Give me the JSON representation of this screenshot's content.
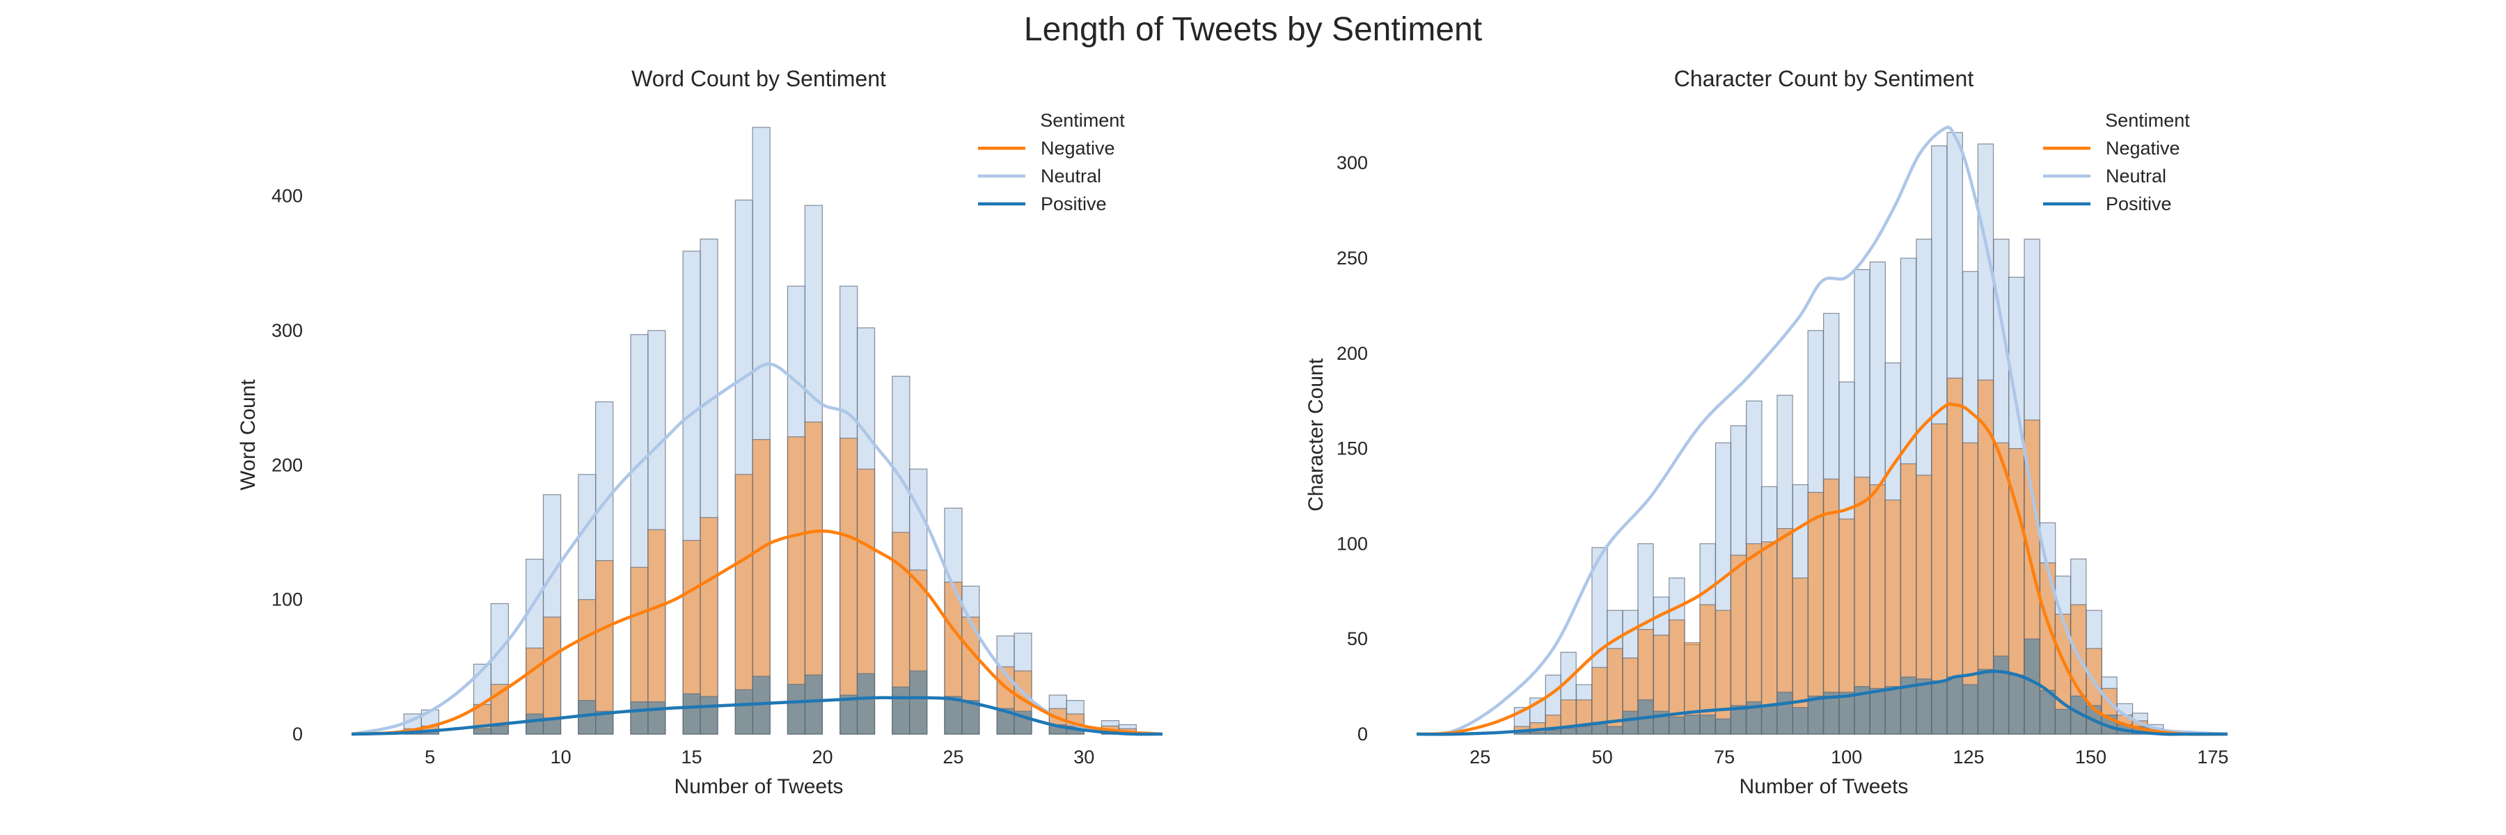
{
  "figure_title": "Length of Tweets by Sentiment",
  "colors": {
    "negative": "#ff7f0e",
    "neutral": "#aec7e8",
    "positive": "#1f77b4",
    "bar_edge": "#5f6b78"
  },
  "chart_data": [
    {
      "type": "histogram",
      "title": "Word Count by Sentiment",
      "xlabel": "Number of Tweets",
      "ylabel": "Word Count",
      "xlim": [
        2,
        33
      ],
      "ylim": [
        0,
        450
      ],
      "xticks": [
        5,
        10,
        15,
        20,
        25,
        30
      ],
      "yticks": [
        0,
        100,
        200,
        300,
        400
      ],
      "grid": false,
      "legend": {
        "title": "Sentiment",
        "placement": "top-right",
        "entries": [
          "Negative",
          "Neutral",
          "Positive"
        ]
      },
      "bin_width": 0.6667,
      "bins": [
        {
          "x": 4.0,
          "neutral": 15,
          "negative": 4,
          "positive": 1
        },
        {
          "x": 4.67,
          "neutral": 18,
          "negative": 6,
          "positive": 2
        },
        {
          "x": 6.67,
          "neutral": 52,
          "negative": 22,
          "positive": 4
        },
        {
          "x": 7.33,
          "neutral": 97,
          "negative": 37,
          "positive": 6
        },
        {
          "x": 8.67,
          "neutral": 130,
          "negative": 64,
          "positive": 15
        },
        {
          "x": 9.33,
          "neutral": 178,
          "negative": 87,
          "positive": 12
        },
        {
          "x": 10.67,
          "neutral": 193,
          "negative": 100,
          "positive": 25
        },
        {
          "x": 11.33,
          "neutral": 247,
          "negative": 129,
          "positive": 17
        },
        {
          "x": 12.67,
          "neutral": 297,
          "negative": 124,
          "positive": 24
        },
        {
          "x": 13.33,
          "neutral": 300,
          "negative": 152,
          "positive": 24
        },
        {
          "x": 14.67,
          "neutral": 359,
          "negative": 144,
          "positive": 30
        },
        {
          "x": 15.33,
          "neutral": 368,
          "negative": 161,
          "positive": 28
        },
        {
          "x": 16.67,
          "neutral": 397,
          "negative": 193,
          "positive": 33
        },
        {
          "x": 17.33,
          "neutral": 451,
          "negative": 219,
          "positive": 43
        },
        {
          "x": 18.67,
          "neutral": 333,
          "negative": 221,
          "positive": 37
        },
        {
          "x": 19.33,
          "neutral": 393,
          "negative": 232,
          "positive": 44
        },
        {
          "x": 20.67,
          "neutral": 333,
          "negative": 220,
          "positive": 29
        },
        {
          "x": 21.33,
          "neutral": 302,
          "negative": 197,
          "positive": 45
        },
        {
          "x": 22.67,
          "neutral": 266,
          "negative": 150,
          "positive": 35
        },
        {
          "x": 23.33,
          "neutral": 197,
          "negative": 122,
          "positive": 47
        },
        {
          "x": 24.67,
          "neutral": 168,
          "negative": 113,
          "positive": 28
        },
        {
          "x": 25.33,
          "neutral": 110,
          "negative": 87,
          "positive": 25
        },
        {
          "x": 26.67,
          "neutral": 73,
          "negative": 50,
          "positive": 19
        },
        {
          "x": 27.33,
          "neutral": 75,
          "negative": 47,
          "positive": 17
        },
        {
          "x": 28.67,
          "neutral": 29,
          "negative": 19,
          "positive": 7
        },
        {
          "x": 29.33,
          "neutral": 25,
          "negative": 15,
          "positive": 6
        },
        {
          "x": 30.67,
          "neutral": 10,
          "negative": 6,
          "positive": 2
        },
        {
          "x": 31.33,
          "neutral": 7,
          "negative": 4,
          "positive": 1
        }
      ],
      "kde": {
        "x": [
          2,
          4,
          6,
          8,
          10,
          12,
          14,
          15,
          17,
          18,
          19,
          20,
          21,
          22,
          23,
          24,
          25,
          26,
          27,
          28,
          29,
          30,
          31,
          32,
          33
        ],
        "negative": [
          0,
          2,
          12,
          35,
          62,
          82,
          97,
          107,
          130,
          142,
          148,
          151,
          147,
          137,
          125,
          105,
          78,
          55,
          35,
          22,
          12,
          6,
          3,
          1,
          0
        ],
        "neutral": [
          0,
          8,
          30,
          70,
          128,
          180,
          220,
          238,
          265,
          275,
          262,
          245,
          238,
          215,
          190,
          155,
          110,
          72,
          45,
          25,
          12,
          5,
          2,
          1,
          0
        ],
        "positive": [
          0,
          1,
          4,
          8,
          12,
          16,
          19,
          20,
          22,
          23,
          24,
          25,
          26,
          27,
          27,
          27,
          26,
          22,
          17,
          11,
          6,
          3,
          1,
          0,
          0
        ]
      }
    },
    {
      "type": "histogram",
      "title": "Character Count by Sentiment",
      "xlabel": "Number of Tweets",
      "ylabel": "Character Count",
      "xlim": [
        12,
        178
      ],
      "ylim": [
        0,
        318
      ],
      "xticks": [
        25,
        50,
        75,
        100,
        125,
        150,
        175
      ],
      "yticks": [
        0,
        50,
        100,
        150,
        200,
        250,
        300
      ],
      "grid": false,
      "legend": {
        "title": "Sentiment",
        "placement": "top-right",
        "entries": [
          "Negative",
          "Neutral",
          "Positive"
        ]
      },
      "bin_width": 3.16,
      "bins": [
        {
          "x": 32.0,
          "neutral": 14,
          "negative": 4,
          "positive": 1
        },
        {
          "x": 35.2,
          "neutral": 19,
          "negative": 6,
          "positive": 1
        },
        {
          "x": 38.4,
          "neutral": 31,
          "negative": 10,
          "positive": 2
        },
        {
          "x": 41.5,
          "neutral": 43,
          "negative": 18,
          "positive": 3
        },
        {
          "x": 44.7,
          "neutral": 26,
          "negative": 18,
          "positive": 4
        },
        {
          "x": 47.9,
          "neutral": 98,
          "negative": 35,
          "positive": 6
        },
        {
          "x": 51.0,
          "neutral": 65,
          "negative": 45,
          "positive": 4
        },
        {
          "x": 54.2,
          "neutral": 65,
          "negative": 40,
          "positive": 12
        },
        {
          "x": 57.3,
          "neutral": 100,
          "negative": 55,
          "positive": 18
        },
        {
          "x": 60.5,
          "neutral": 72,
          "negative": 52,
          "positive": 12
        },
        {
          "x": 63.7,
          "neutral": 82,
          "negative": 60,
          "positive": 9
        },
        {
          "x": 66.8,
          "neutral": 47,
          "negative": 48,
          "positive": 10
        },
        {
          "x": 70.0,
          "neutral": 100,
          "negative": 68,
          "positive": 10
        },
        {
          "x": 73.2,
          "neutral": 153,
          "negative": 65,
          "positive": 8
        },
        {
          "x": 76.3,
          "neutral": 162,
          "negative": 94,
          "positive": 15
        },
        {
          "x": 79.5,
          "neutral": 175,
          "negative": 100,
          "positive": 17
        },
        {
          "x": 82.6,
          "neutral": 130,
          "negative": 101,
          "positive": 15
        },
        {
          "x": 85.8,
          "neutral": 178,
          "negative": 108,
          "positive": 22
        },
        {
          "x": 89.0,
          "neutral": 131,
          "negative": 82,
          "positive": 14
        },
        {
          "x": 92.1,
          "neutral": 212,
          "negative": 127,
          "positive": 20
        },
        {
          "x": 95.3,
          "neutral": 221,
          "negative": 134,
          "positive": 22
        },
        {
          "x": 98.5,
          "neutral": 185,
          "negative": 113,
          "positive": 22
        },
        {
          "x": 101.6,
          "neutral": 244,
          "negative": 135,
          "positive": 25
        },
        {
          "x": 104.8,
          "neutral": 248,
          "negative": 131,
          "positive": 24
        },
        {
          "x": 107.9,
          "neutral": 195,
          "negative": 123,
          "positive": 25
        },
        {
          "x": 111.1,
          "neutral": 250,
          "negative": 142,
          "positive": 30
        },
        {
          "x": 114.3,
          "neutral": 260,
          "negative": 136,
          "positive": 29
        },
        {
          "x": 117.4,
          "neutral": 309,
          "negative": 163,
          "positive": 28
        },
        {
          "x": 120.6,
          "neutral": 316,
          "negative": 187,
          "positive": 30
        },
        {
          "x": 123.8,
          "neutral": 243,
          "negative": 153,
          "positive": 26
        },
        {
          "x": 126.9,
          "neutral": 310,
          "negative": 186,
          "positive": 34
        },
        {
          "x": 130.1,
          "neutral": 260,
          "negative": 153,
          "positive": 41
        },
        {
          "x": 133.2,
          "neutral": 240,
          "negative": 150,
          "positive": 31
        },
        {
          "x": 136.4,
          "neutral": 260,
          "negative": 165,
          "positive": 50
        },
        {
          "x": 139.6,
          "neutral": 111,
          "negative": 90,
          "positive": 23
        },
        {
          "x": 142.7,
          "neutral": 83,
          "negative": 63,
          "positive": 13
        },
        {
          "x": 145.9,
          "neutral": 92,
          "negative": 68,
          "positive": 20
        },
        {
          "x": 149.1,
          "neutral": 65,
          "negative": 45,
          "positive": 15
        },
        {
          "x": 152.2,
          "neutral": 30,
          "negative": 24,
          "positive": 10
        },
        {
          "x": 155.4,
          "neutral": 16,
          "negative": 10,
          "positive": 5
        },
        {
          "x": 158.5,
          "neutral": 11,
          "negative": 7,
          "positive": 4
        },
        {
          "x": 161.7,
          "neutral": 5,
          "negative": 3,
          "positive": 2
        }
      ],
      "kde": {
        "x": [
          12,
          20,
          30,
          40,
          50,
          60,
          70,
          80,
          90,
          95,
          100,
          105,
          110,
          115,
          120,
          122,
          125,
          130,
          135,
          140,
          145,
          150,
          155,
          160,
          165,
          170,
          178
        ],
        "negative": [
          0,
          1,
          8,
          22,
          45,
          60,
          73,
          92,
          108,
          115,
          118,
          125,
          143,
          160,
          172,
          173,
          170,
          155,
          118,
          68,
          35,
          15,
          7,
          3,
          1,
          0,
          0
        ],
        "neutral": [
          0,
          2,
          18,
          45,
          95,
          125,
          162,
          188,
          218,
          238,
          240,
          255,
          278,
          305,
          318,
          315,
          295,
          240,
          170,
          100,
          55,
          30,
          14,
          6,
          2,
          1,
          0
        ],
        "positive": [
          0,
          0,
          1,
          3,
          6,
          9,
          12,
          14,
          17,
          19,
          20,
          22,
          24,
          26,
          28,
          30,
          31,
          33,
          31,
          25,
          15,
          8,
          3,
          1,
          0,
          0,
          0
        ]
      }
    }
  ]
}
